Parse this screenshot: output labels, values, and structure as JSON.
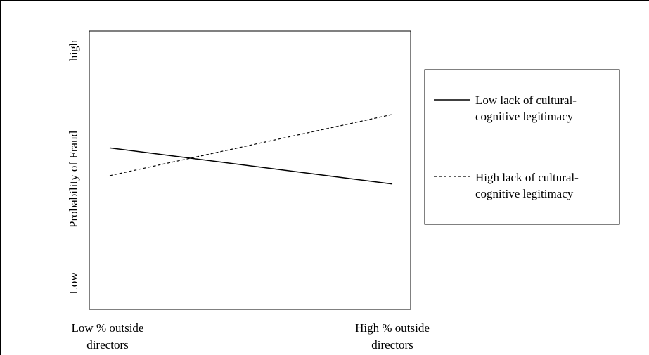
{
  "chart_data": {
    "type": "line",
    "title": "",
    "xlabel": "",
    "ylabel": "Probability of Fraud",
    "categories": [
      "Low % outside directors",
      "High % outside directors"
    ],
    "category_labels": [
      [
        "Low % outside",
        "directors"
      ],
      [
        "High % outside",
        "directors"
      ]
    ],
    "y_tick_labels": {
      "low": "Low",
      "high": "high"
    },
    "ylim": [
      0,
      10
    ],
    "series": [
      {
        "name_lines": [
          "Low lack of cultural-",
          "cognitive legitimacy"
        ],
        "values": [
          5.8,
          4.5
        ],
        "style": "solid",
        "color": "#000000"
      },
      {
        "name_lines": [
          "High lack of cultural-",
          "cognitive legitimacy"
        ],
        "values": [
          4.8,
          7.0
        ],
        "style": "dashed",
        "color": "#000000"
      }
    ],
    "grid": false,
    "legend_position": "right"
  }
}
